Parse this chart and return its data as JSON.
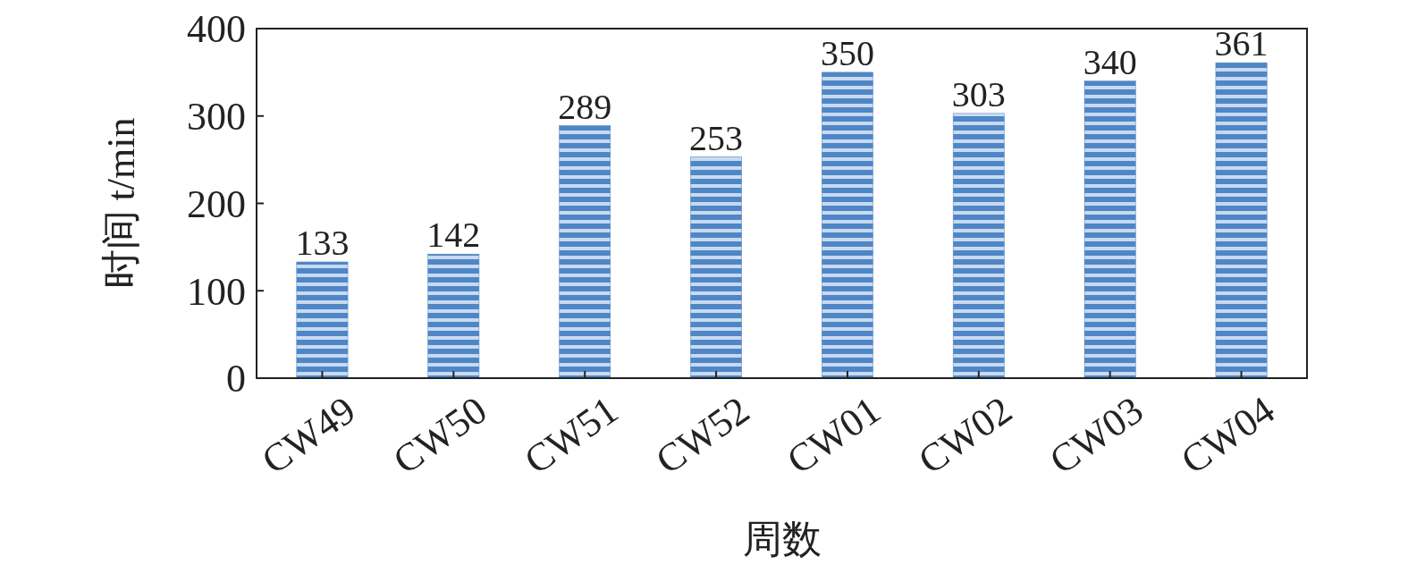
{
  "chart_data": {
    "type": "bar",
    "xlabel": "周数",
    "ylabel": "时间 t/min",
    "categories": [
      "CW49",
      "CW50",
      "CW51",
      "CW52",
      "CW01",
      "CW02",
      "CW03",
      "CW04"
    ],
    "values": [
      133,
      142,
      289,
      253,
      350,
      303,
      340,
      361
    ],
    "color": "#4f86c6",
    "ylim": [
      0,
      400
    ],
    "yticks": [
      0,
      100,
      200,
      300,
      400
    ],
    "data_labels": true,
    "grid": false
  }
}
